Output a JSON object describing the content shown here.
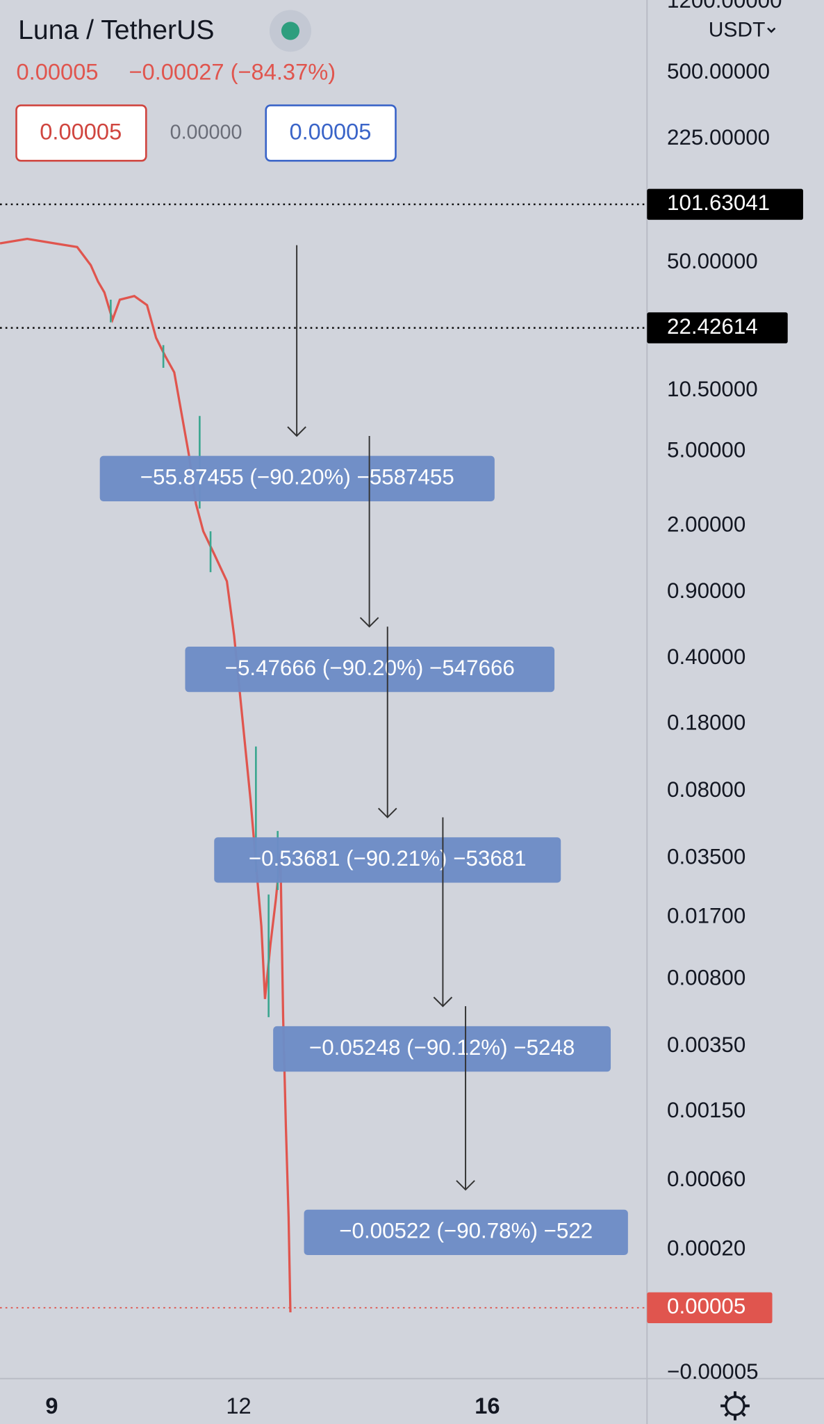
{
  "header": {
    "symbol": "Luna / TetherUS",
    "price": "0.00005",
    "change": "−0.00027 (−84.37%)",
    "bid": "0.00005",
    "spread": "0.00000",
    "ask": "0.00005"
  },
  "price_axis": {
    "currency": "USDT",
    "labels": [
      "1200.00000",
      "500.00000",
      "225.00000",
      "50.00000",
      "10.50000",
      "5.00000",
      "2.00000",
      "0.90000",
      "0.40000",
      "0.18000",
      "0.08000",
      "0.03500",
      "0.01700",
      "0.00800",
      "0.00350",
      "0.00150",
      "0.00060",
      "0.00020",
      "−0.00005"
    ],
    "markers": [
      "101.63041",
      "22.42614",
      "0.00005"
    ]
  },
  "measurements": [
    "−55.87455 (−90.20%) −5587455",
    "−5.47666 (−90.20%) −547666",
    "−0.53681 (−90.21%) −53681",
    "−0.05248 (−90.12%) −5248",
    "−0.00522 (−90.78%) −522"
  ],
  "time_axis": [
    "9",
    "12",
    "16"
  ]
}
